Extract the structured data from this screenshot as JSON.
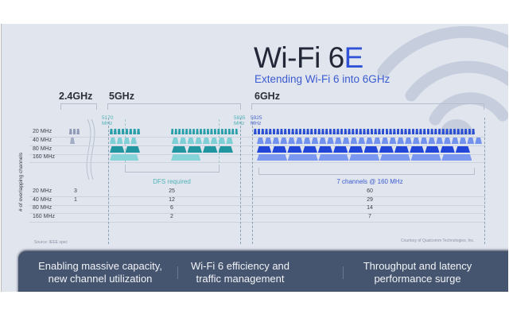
{
  "title": {
    "main": "Wi-Fi 6",
    "accent": "E",
    "subtitle": "Extending Wi-Fi 6 into 6GHz"
  },
  "bands": [
    {
      "label": "2.4GHz",
      "counts": [
        "3",
        "1",
        "",
        ""
      ]
    },
    {
      "label": "5GHz",
      "start_freq": "5170",
      "end_freq": "5835",
      "unit": "MHz",
      "counts": [
        "25",
        "12",
        "6",
        "2"
      ],
      "note": "DFS required"
    },
    {
      "label": "6GHz",
      "start_freq": "5925",
      "unit": "MHz",
      "counts": [
        "60",
        "29",
        "14",
        "7"
      ],
      "note": "7 channels @ 160 MHz"
    }
  ],
  "channel_widths": [
    "20 MHz",
    "40 MHz",
    "80 MHz",
    "160 MHz"
  ],
  "axis_label": "# of overlapping channels",
  "source": "Source: IEEE spec",
  "credit": "Courtesy of Qualcomm Technologies, Inc.",
  "highlights": [
    "Enabling massive capacity, new channel utilization",
    "Wi-Fi 6 efficiency and traffic management",
    "Throughput and latency performance surge"
  ],
  "colors": {
    "accent": "#2f52d6",
    "band_5ghz": "#2a9fa9",
    "band_6ghz": "#2a4fd0",
    "band_24ghz": "#8e9ab5",
    "footer_bar": "#45546f",
    "background": "#e1e5ee"
  },
  "icons": [
    "wifi-icon"
  ]
}
